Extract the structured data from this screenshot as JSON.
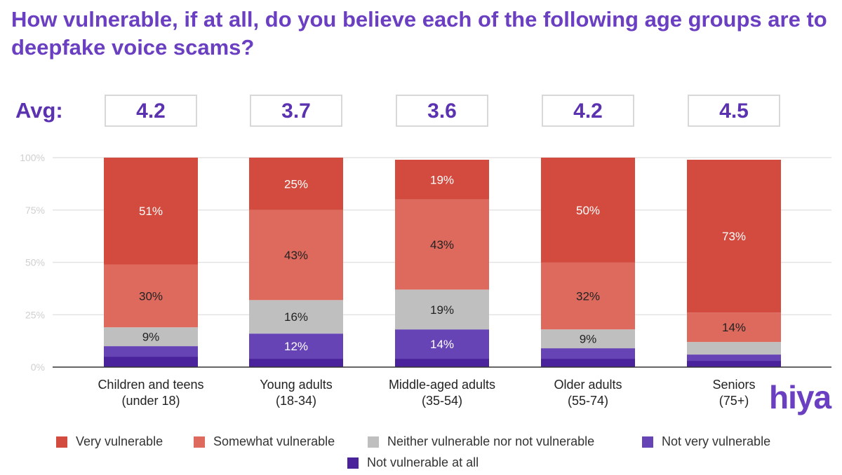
{
  "title": "How vulnerable, if at all, do you believe each of the following age groups are to deepfake voice scams?",
  "avg_label": "Avg:",
  "averages": [
    "4.2",
    "3.7",
    "3.6",
    "4.2",
    "4.5"
  ],
  "logo": "hiya",
  "chart_data": {
    "type": "bar",
    "stacked": true,
    "categories": [
      "Children and teens\n(under 18)",
      "Young adults\n(18-34)",
      "Middle-aged adults\n(35-54)",
      "Older adults\n(55-74)",
      "Seniors\n(75+)"
    ],
    "series": [
      {
        "name": "Not vulnerable at all",
        "color": "#4a229c",
        "values": [
          5,
          4,
          4,
          4,
          3
        ],
        "labels": [
          "",
          "",
          "",
          "",
          ""
        ]
      },
      {
        "name": "Not very vulnerable",
        "color": "#6644b6",
        "values": [
          5,
          12,
          14,
          5,
          3
        ],
        "labels": [
          "",
          "12%",
          "14%",
          "",
          ""
        ]
      },
      {
        "name": "Neither vulnerable nor not vulnerable",
        "color": "#c0bfc0",
        "values": [
          9,
          16,
          19,
          9,
          6
        ],
        "labels": [
          "9%",
          "16%",
          "19%",
          "9%",
          ""
        ]
      },
      {
        "name": "Somewhat vulnerable",
        "color": "#de6a5e",
        "values": [
          30,
          43,
          43,
          32,
          14
        ],
        "labels": [
          "30%",
          "43%",
          "43%",
          "32%",
          "14%"
        ]
      },
      {
        "name": "Very vulnerable",
        "color": "#d24b3e",
        "values": [
          51,
          25,
          19,
          50,
          73
        ],
        "labels": [
          "51%",
          "25%",
          "19%",
          "50%",
          "73%"
        ]
      }
    ],
    "yticks": [
      "0%",
      "25%",
      "50%",
      "75%",
      "100%"
    ],
    "ylim": [
      0,
      100
    ],
    "grid": true,
    "legend_position": "bottom",
    "legend_order": [
      "Very vulnerable",
      "Somewhat vulnerable",
      "Neither vulnerable nor not vulnerable",
      "Not very vulnerable",
      "Not vulnerable at all"
    ]
  }
}
